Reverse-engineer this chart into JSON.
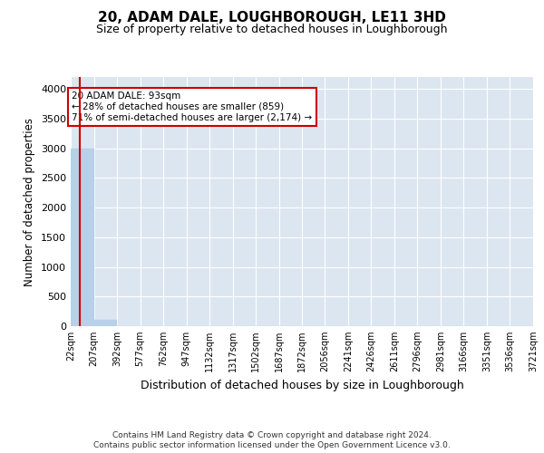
{
  "title": "20, ADAM DALE, LOUGHBOROUGH, LE11 3HD",
  "subtitle": "Size of property relative to detached houses in Loughborough",
  "xlabel": "Distribution of detached houses by size in Loughborough",
  "ylabel": "Number of detached properties",
  "footer_line1": "Contains HM Land Registry data © Crown copyright and database right 2024.",
  "footer_line2": "Contains public sector information licensed under the Open Government Licence v3.0.",
  "bar_edges": [
    22,
    207,
    392,
    577,
    762,
    947,
    1132,
    1317,
    1502,
    1687,
    1872,
    2056,
    2241,
    2426,
    2611,
    2796,
    2981,
    3166,
    3351,
    3536,
    3721
  ],
  "bar_heights": [
    3000,
    110,
    0,
    0,
    0,
    0,
    0,
    0,
    0,
    0,
    0,
    0,
    0,
    0,
    0,
    0,
    0,
    0,
    0,
    0
  ],
  "bar_color": "#b8d0e8",
  "bar_edgecolor": "#b8d0e8",
  "property_size": 93,
  "red_line_color": "#cc0000",
  "annotation_text": "20 ADAM DALE: 93sqm\n← 28% of detached houses are smaller (859)\n71% of semi-detached houses are larger (2,174) →",
  "annotation_box_color": "#cc0000",
  "ylim": [
    0,
    4200
  ],
  "yticks": [
    0,
    500,
    1000,
    1500,
    2000,
    2500,
    3000,
    3500,
    4000
  ],
  "bg_color": "#dce6f1",
  "plot_bg_color": "#dce6f1",
  "grid_color": "#ffffff",
  "title_fontsize": 11,
  "subtitle_fontsize": 9
}
